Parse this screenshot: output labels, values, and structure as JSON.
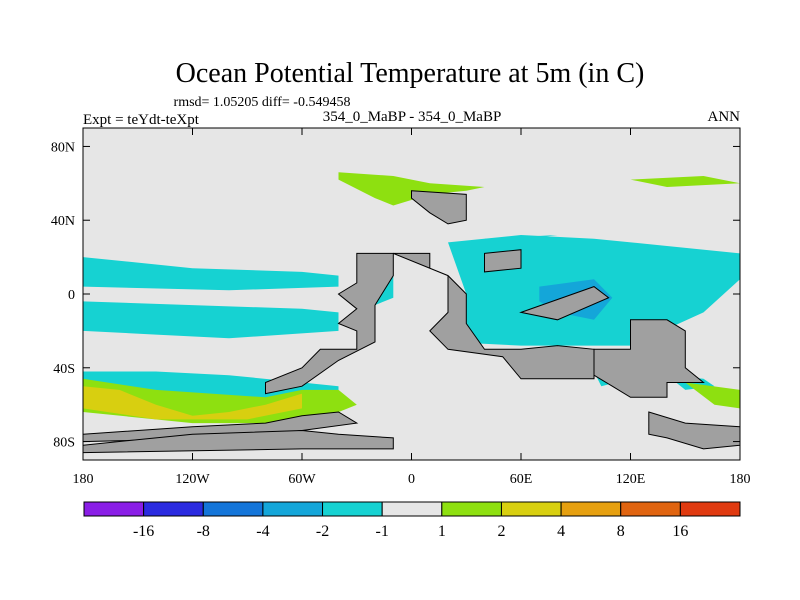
{
  "chart_data": {
    "type": "contour-map",
    "title": "Ocean Potential Temperature at 5m (in C)",
    "stats_line": "rmsd= 1.05205 diff= -0.549458",
    "left_label": "Expt = teYdt-teXpt",
    "center_label": "354_0_MaBP - 354_0_MaBP",
    "right_label": "ANN",
    "x_axis": {
      "range": [
        -180,
        180
      ],
      "ticks": [
        -180,
        -120,
        -60,
        0,
        60,
        120,
        180
      ],
      "tick_labels": [
        "180",
        "120W",
        "60W",
        "0",
        "60E",
        "120E",
        "180"
      ]
    },
    "y_axis": {
      "range": [
        -90,
        90
      ],
      "ticks": [
        80,
        40,
        0,
        -40,
        -80
      ],
      "tick_labels": [
        "80N",
        "40N",
        "0",
        "40S",
        "80S"
      ]
    },
    "colorbar": {
      "levels": [
        -16,
        -8,
        -4,
        -2,
        -1,
        1,
        2,
        4,
        8,
        16
      ],
      "level_labels": [
        "-16",
        "-8",
        "-4",
        "-2",
        "-1",
        "1",
        "2",
        "4",
        "8",
        "16"
      ],
      "colors": [
        "#8a1ee6",
        "#2b2be0",
        "#1475d9",
        "#14a6d9",
        "#16d2d2",
        "#e6e6e6",
        "#8ee010",
        "#d8cf10",
        "#e6a010",
        "#e06410",
        "#e03a10"
      ]
    },
    "land_color": "#a0a0a0",
    "background_color": "#e6e6e6",
    "regions": [
      {
        "name": "cyan-north-pacific",
        "value": -1.5,
        "points": [
          [
            -180,
            20
          ],
          [
            -120,
            14
          ],
          [
            -60,
            12
          ],
          [
            -40,
            10
          ],
          [
            -40,
            4
          ],
          [
            -100,
            2
          ],
          [
            -180,
            4
          ]
        ]
      },
      {
        "name": "cyan-south-pacific",
        "value": -1.5,
        "points": [
          [
            -180,
            -4
          ],
          [
            -120,
            -6
          ],
          [
            -60,
            -8
          ],
          [
            -40,
            -10
          ],
          [
            -40,
            -20
          ],
          [
            -100,
            -24
          ],
          [
            -140,
            -22
          ],
          [
            -180,
            -20
          ]
        ]
      },
      {
        "name": "cyan-south-ocean-west",
        "value": -1.5,
        "points": [
          [
            -180,
            -42
          ],
          [
            -140,
            -42
          ],
          [
            -100,
            -44
          ],
          [
            -60,
            -48
          ],
          [
            -40,
            -50
          ],
          [
            -40,
            -56
          ],
          [
            -100,
            -58
          ],
          [
            -180,
            -56
          ]
        ]
      },
      {
        "name": "cyan-central-atlantic",
        "value": -1.5,
        "points": [
          [
            -30,
            20
          ],
          [
            -20,
            20
          ],
          [
            -10,
            10
          ],
          [
            -10,
            -2
          ],
          [
            -20,
            -6
          ],
          [
            -30,
            -2
          ]
        ]
      },
      {
        "name": "cyan-indian-ocean",
        "value": -1.8,
        "points": [
          [
            20,
            28
          ],
          [
            60,
            32
          ],
          [
            100,
            30
          ],
          [
            140,
            26
          ],
          [
            180,
            22
          ],
          [
            180,
            8
          ],
          [
            160,
            -10
          ],
          [
            120,
            -28
          ],
          [
            60,
            -28
          ],
          [
            20,
            -26
          ],
          [
            20,
            -10
          ],
          [
            30,
            0
          ]
        ]
      },
      {
        "name": "blue-indian-core",
        "value": -3,
        "points": [
          [
            70,
            4
          ],
          [
            100,
            8
          ],
          [
            110,
            -2
          ],
          [
            100,
            -14
          ],
          [
            80,
            -10
          ],
          [
            70,
            -4
          ]
        ]
      },
      {
        "name": "cyan-south-indian-patch",
        "value": -1.5,
        "points": [
          [
            100,
            -42
          ],
          [
            110,
            -40
          ],
          [
            112,
            -48
          ],
          [
            104,
            -50
          ]
        ]
      },
      {
        "name": "cyan-south-pacific-east",
        "value": -1.5,
        "points": [
          [
            140,
            -44
          ],
          [
            160,
            -46
          ],
          [
            166,
            -50
          ],
          [
            150,
            -52
          ]
        ]
      },
      {
        "name": "cyan-north-atlantic-strip",
        "value": -1.5,
        "points": [
          [
            40,
            30
          ],
          [
            80,
            32
          ],
          [
            50,
            28
          ]
        ]
      },
      {
        "name": "green-north-atlantic",
        "value": 1.5,
        "points": [
          [
            -40,
            66
          ],
          [
            -10,
            64
          ],
          [
            10,
            60
          ],
          [
            40,
            58
          ],
          [
            30,
            56
          ],
          [
            10,
            54
          ],
          [
            -10,
            48
          ],
          [
            -20,
            52
          ],
          [
            -40,
            62
          ]
        ]
      },
      {
        "name": "green-arctic-strip",
        "value": 1.5,
        "points": [
          [
            120,
            62
          ],
          [
            160,
            64
          ],
          [
            180,
            60
          ],
          [
            140,
            58
          ]
        ]
      },
      {
        "name": "green-south-pacific",
        "value": 1.5,
        "points": [
          [
            -180,
            -46
          ],
          [
            -140,
            -52
          ],
          [
            -80,
            -56
          ],
          [
            -60,
            -52
          ],
          [
            -40,
            -52
          ],
          [
            -30,
            -60
          ],
          [
            -50,
            -68
          ],
          [
            -80,
            -70
          ],
          [
            -120,
            -70
          ],
          [
            -180,
            -64
          ]
        ]
      },
      {
        "name": "yellow-south-pacific",
        "value": 3,
        "points": [
          [
            -180,
            -50
          ],
          [
            -160,
            -52
          ],
          [
            -140,
            -60
          ],
          [
            -120,
            -66
          ],
          [
            -100,
            -64
          ],
          [
            -80,
            -60
          ],
          [
            -60,
            -54
          ],
          [
            -60,
            -62
          ],
          [
            -90,
            -68
          ],
          [
            -140,
            -68
          ],
          [
            -180,
            -62
          ]
        ]
      },
      {
        "name": "green-east-south-indian",
        "value": 1.5,
        "points": [
          [
            150,
            -48
          ],
          [
            180,
            -52
          ],
          [
            180,
            -62
          ],
          [
            166,
            -60
          ]
        ]
      }
    ],
    "land_regions": [
      {
        "name": "americas",
        "points": [
          [
            -30,
            22
          ],
          [
            -10,
            22
          ],
          [
            -10,
            10
          ],
          [
            -20,
            -6
          ],
          [
            -20,
            -26
          ],
          [
            -40,
            -36
          ],
          [
            -60,
            -50
          ],
          [
            -80,
            -54
          ],
          [
            -80,
            -48
          ],
          [
            -60,
            -40
          ],
          [
            -50,
            -30
          ],
          [
            -30,
            -30
          ],
          [
            -30,
            -20
          ],
          [
            -40,
            -16
          ],
          [
            -30,
            -8
          ],
          [
            -40,
            0
          ],
          [
            -30,
            6
          ]
        ]
      },
      {
        "name": "greenland-europe",
        "value": 0,
        "points": [
          [
            0,
            56
          ],
          [
            30,
            54
          ],
          [
            30,
            40
          ],
          [
            20,
            38
          ],
          [
            10,
            44
          ],
          [
            0,
            52
          ]
        ]
      },
      {
        "name": "africa-eurasia",
        "points": [
          [
            -10,
            22
          ],
          [
            10,
            22
          ],
          [
            10,
            14
          ],
          [
            20,
            10
          ],
          [
            20,
            -10
          ],
          [
            10,
            -20
          ],
          [
            20,
            -30
          ],
          [
            50,
            -34
          ],
          [
            60,
            -46
          ],
          [
            100,
            -46
          ],
          [
            100,
            -30
          ],
          [
            80,
            -28
          ],
          [
            60,
            -30
          ],
          [
            40,
            -30
          ],
          [
            30,
            -16
          ],
          [
            30,
            0
          ],
          [
            20,
            10
          ]
        ]
      },
      {
        "name": "middle-east",
        "points": [
          [
            40,
            22
          ],
          [
            60,
            24
          ],
          [
            60,
            14
          ],
          [
            40,
            12
          ]
        ]
      },
      {
        "name": "southeast-asia-strip",
        "points": [
          [
            60,
            -10
          ],
          [
            100,
            4
          ],
          [
            108,
            -2
          ],
          [
            80,
            -14
          ]
        ]
      },
      {
        "name": "australia",
        "points": [
          [
            100,
            -30
          ],
          [
            120,
            -30
          ],
          [
            120,
            -14
          ],
          [
            140,
            -14
          ],
          [
            150,
            -20
          ],
          [
            150,
            -40
          ],
          [
            160,
            -48
          ],
          [
            140,
            -48
          ],
          [
            140,
            -56
          ],
          [
            120,
            -56
          ],
          [
            110,
            -50
          ],
          [
            100,
            -44
          ]
        ]
      },
      {
        "name": "antarctica-west",
        "points": [
          [
            -180,
            -76
          ],
          [
            -120,
            -72
          ],
          [
            -80,
            -70
          ],
          [
            -60,
            -66
          ],
          [
            -40,
            -64
          ],
          [
            -30,
            -70
          ],
          [
            -60,
            -74
          ],
          [
            -100,
            -78
          ],
          [
            -180,
            -80
          ]
        ]
      },
      {
        "name": "antarctica-ross",
        "points": [
          [
            -180,
            -82
          ],
          [
            -120,
            -76
          ],
          [
            -60,
            -74
          ],
          [
            -40,
            -76
          ],
          [
            -10,
            -78
          ],
          [
            -10,
            -84
          ],
          [
            -60,
            -84
          ],
          [
            -180,
            -86
          ]
        ]
      },
      {
        "name": "antarctica-east",
        "points": [
          [
            130,
            -64
          ],
          [
            150,
            -70
          ],
          [
            180,
            -72
          ],
          [
            180,
            -82
          ],
          [
            160,
            -84
          ],
          [
            140,
            -78
          ],
          [
            130,
            -76
          ]
        ]
      }
    ]
  }
}
